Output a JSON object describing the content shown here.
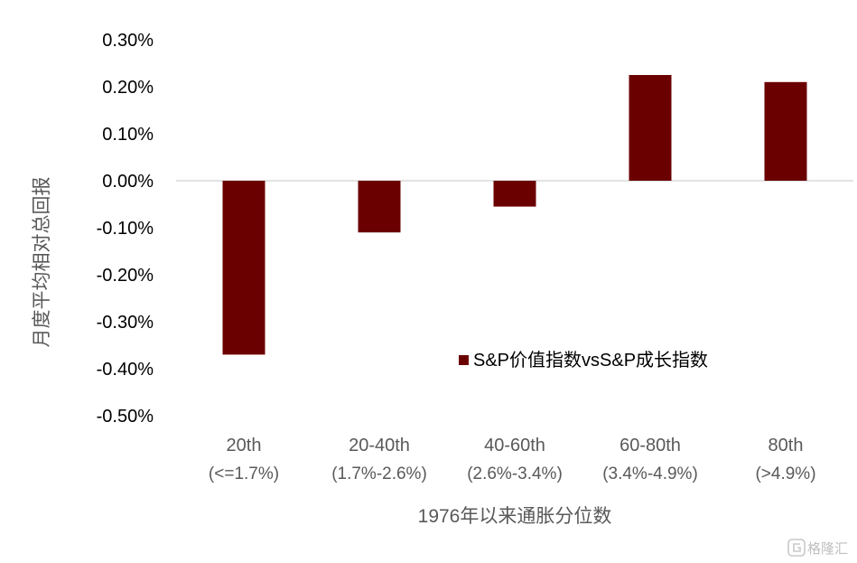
{
  "chart_data": {
    "type": "bar",
    "categories": [
      "20th",
      "20-40th",
      "40-60th",
      "60-80th",
      "80th"
    ],
    "category_sublabels": [
      "(<=1.7%)",
      "(1.7%-2.6%)",
      "(2.6%-3.4%)",
      "(3.4%-4.9%)",
      "(>4.9%)"
    ],
    "series": [
      {
        "name": "S&P价值指数vsS&P成长指数",
        "values": [
          -0.0037,
          -0.0011,
          -0.00055,
          0.00225,
          0.0021
        ],
        "color": "#6b0000"
      }
    ],
    "ylabel": "月度平均相对总回报",
    "xlabel": "1976年以来通胀分位数",
    "ylim": [
      -0.005,
      0.003
    ],
    "yticks": [
      "0.30%",
      "0.20%",
      "0.10%",
      "0.00%",
      "-0.10%",
      "-0.20%",
      "-0.30%",
      "-0.40%",
      "-0.50%"
    ],
    "ytick_values": [
      0.003,
      0.002,
      0.001,
      0,
      -0.001,
      -0.002,
      -0.003,
      -0.004,
      -0.005
    ],
    "grid": false,
    "legend_position": "center-right"
  },
  "watermark": {
    "text": "格隆汇",
    "icon": "gelonghui-logo-icon"
  }
}
